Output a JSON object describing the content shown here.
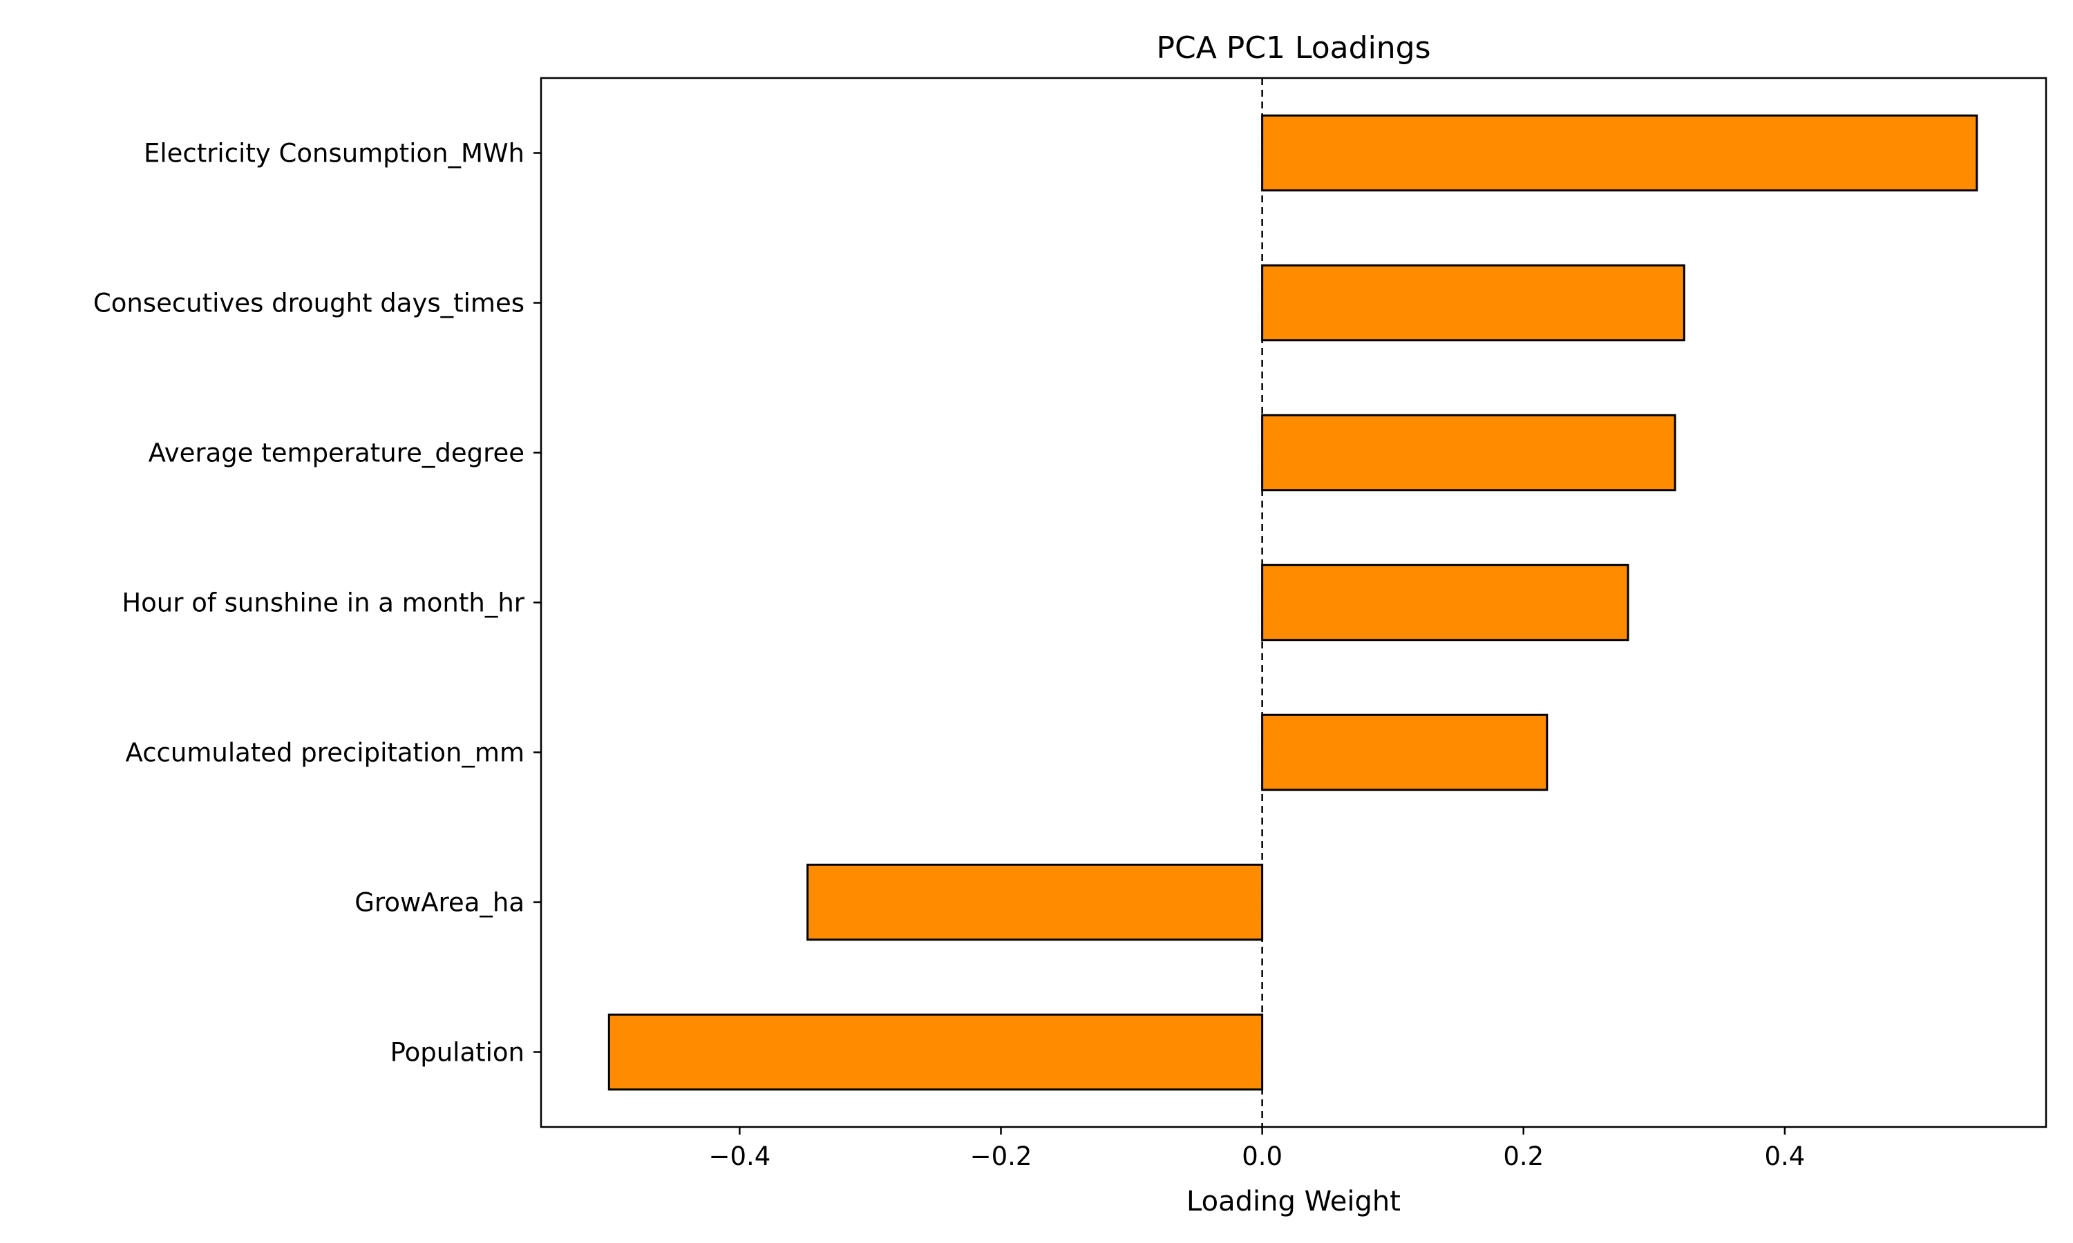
{
  "chart_data": {
    "type": "bar",
    "orientation": "horizontal",
    "title": "PCA PC1 Loadings",
    "xlabel": "Loading Weight",
    "ylabel": "",
    "categories": [
      "Electricity Consumption_MWh",
      "Consecutives drought days_times",
      "Average temperature_degree",
      "Hour of sunshine in a month_hr",
      "Accumulated precipitation_mm",
      "GrowArea_ha",
      "Population"
    ],
    "values": [
      0.547,
      0.323,
      0.316,
      0.28,
      0.218,
      -0.348,
      -0.5
    ],
    "xlim": [
      -0.552,
      0.6
    ],
    "xticks": [
      -0.4,
      -0.2,
      0.0,
      0.2,
      0.4
    ],
    "xtick_labels": [
      "−0.4",
      "−0.2",
      "0.0",
      "0.2",
      "0.4"
    ],
    "reference_line": {
      "x": 0,
      "style": "dashed"
    },
    "bar_color": "#ff8c00",
    "edge_color": "#000000",
    "grid": false,
    "legend": "none"
  }
}
